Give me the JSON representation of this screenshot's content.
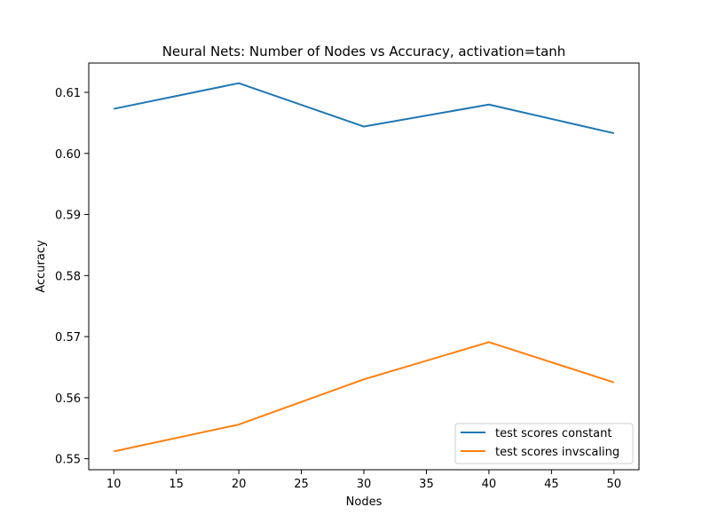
{
  "chart_data": {
    "type": "line",
    "title": "Neural Nets: Number of Nodes vs Accuracy, activation=tanh",
    "xlabel": "Nodes",
    "ylabel": "Accuracy",
    "x": [
      10,
      20,
      30,
      40,
      50
    ],
    "xlim": [
      8,
      52
    ],
    "ylim": [
      0.5482,
      0.6148
    ],
    "xticks": [
      10,
      15,
      20,
      25,
      30,
      35,
      40,
      45,
      50
    ],
    "yticks": [
      0.55,
      0.56,
      0.57,
      0.58,
      0.59,
      0.6,
      0.61
    ],
    "ytick_labels": [
      "0.55",
      "0.56",
      "0.57",
      "0.58",
      "0.59",
      "0.60",
      "0.61"
    ],
    "grid": false,
    "legend_position": "lower-right",
    "series": [
      {
        "name": "test scores constant",
        "color": "#1f77b4",
        "values": [
          0.6073,
          0.6115,
          0.6044,
          0.608,
          0.6033
        ]
      },
      {
        "name": "test scores invscaling",
        "color": "#ff7f0e",
        "values": [
          0.5512,
          0.5556,
          0.563,
          0.5691,
          0.5625
        ]
      }
    ]
  }
}
